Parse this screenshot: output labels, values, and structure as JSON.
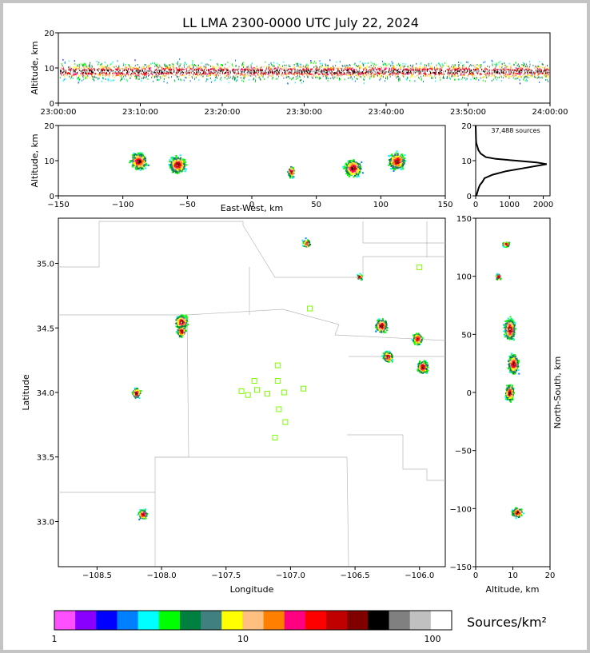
{
  "chart_data": [
    {
      "type": "scatter",
      "panel": "altitude-time",
      "title": "LL LMA 2300-0000 UTC July 22, 2024",
      "ylabel": "Altitude, km",
      "xlim": [
        "23:00:00",
        "24:00:00"
      ],
      "ylim": [
        0,
        20
      ],
      "yticks": [
        "0",
        "10",
        "20"
      ],
      "xticks": [
        "23:00:00",
        "23:10:00",
        "23:20:00",
        "23:30:00",
        "23:40:00",
        "23:50:00",
        "24:00:00"
      ],
      "description_of_data": "continuous band of sources between about 4 and 14 km altitude throughout the hour, densest near 9-10 km"
    },
    {
      "type": "scatter",
      "panel": "altitude-eastwest",
      "xlabel": "East-West, km",
      "ylabel": "Altitude, km",
      "xlim": [
        -150,
        150
      ],
      "ylim": [
        0,
        20
      ],
      "xticks": [
        "−150",
        "−100",
        "−50",
        "0",
        "50",
        "100",
        "150"
      ],
      "yticks": [
        "0",
        "10",
        "20"
      ],
      "clusters": [
        {
          "x": -88,
          "z": 10
        },
        {
          "x": -58,
          "z": 9
        },
        {
          "x": 30,
          "z": 7
        },
        {
          "x": 78,
          "z": 8
        },
        {
          "x": 112,
          "z": 10
        }
      ]
    },
    {
      "type": "line",
      "panel": "altitude-histogram",
      "annotation": "37,488 sources",
      "xlim": [
        0,
        2200
      ],
      "ylim": [
        0,
        20
      ],
      "xticks": [
        "0",
        "1000",
        "2000"
      ],
      "yticks": [
        "0",
        "10",
        "20"
      ],
      "points": [
        [
          20,
          0
        ],
        [
          80,
          2
        ],
        [
          120,
          3
        ],
        [
          200,
          4
        ],
        [
          260,
          5
        ],
        [
          500,
          6
        ],
        [
          900,
          7
        ],
        [
          1500,
          8
        ],
        [
          2100,
          9
        ],
        [
          1800,
          9.5
        ],
        [
          1200,
          10
        ],
        [
          600,
          10.5
        ],
        [
          300,
          11
        ],
        [
          150,
          12
        ],
        [
          80,
          13
        ],
        [
          50,
          14
        ],
        [
          20,
          15
        ],
        [
          10,
          16
        ],
        [
          5,
          18
        ],
        [
          0,
          20
        ]
      ]
    },
    {
      "type": "scatter",
      "panel": "plan-view-map",
      "xlabel": "Longitude",
      "ylabel": "Latitude",
      "xlim": [
        -108.8,
        -105.8
      ],
      "ylim": [
        32.65,
        35.35
      ],
      "xticks": [
        "−108.5",
        "−108.0",
        "−107.5",
        "−107.0",
        "−106.5",
        "−106.0"
      ],
      "yticks": [
        "33.0",
        "33.5",
        "34.0",
        "34.5",
        "35.0"
      ],
      "clusters": [
        {
          "lon": -108.15,
          "lat": 33.06
        },
        {
          "lon": -108.2,
          "lat": 34.0
        },
        {
          "lon": -107.85,
          "lat": 34.55
        },
        {
          "lon": -107.85,
          "lat": 34.48
        },
        {
          "lon": -106.88,
          "lat": 35.16
        },
        {
          "lon": -106.47,
          "lat": 34.9
        },
        {
          "lon": -106.3,
          "lat": 34.52
        },
        {
          "lon": -106.25,
          "lat": 34.28
        },
        {
          "lon": -106.02,
          "lat": 34.42
        },
        {
          "lon": -105.98,
          "lat": 34.2
        }
      ],
      "stations": [
        {
          "lon": -107.1,
          "lat": 34.21
        },
        {
          "lon": -107.28,
          "lat": 34.09
        },
        {
          "lon": -107.1,
          "lat": 34.09
        },
        {
          "lon": -107.38,
          "lat": 34.01
        },
        {
          "lon": -107.33,
          "lat": 33.98
        },
        {
          "lon": -107.26,
          "lat": 34.02
        },
        {
          "lon": -107.18,
          "lat": 33.99
        },
        {
          "lon": -107.05,
          "lat": 34.0
        },
        {
          "lon": -106.9,
          "lat": 34.03
        },
        {
          "lon": -107.09,
          "lat": 33.87
        },
        {
          "lon": -107.04,
          "lat": 33.77
        },
        {
          "lon": -107.12,
          "lat": 33.65
        },
        {
          "lon": -106.85,
          "lat": 34.65
        },
        {
          "lon": -106.0,
          "lat": 34.97
        }
      ],
      "station_color": "#7cfc00"
    },
    {
      "type": "scatter",
      "panel": "northsouth-altitude",
      "xlabel": "Altitude, km",
      "ylabel": "North-South, km",
      "xlim": [
        0,
        20
      ],
      "ylim": [
        -150,
        150
      ],
      "xticks": [
        "0",
        "10",
        "20"
      ],
      "yticks": [
        "−150",
        "−100",
        "−50",
        "0",
        "50",
        "100",
        "150"
      ],
      "clusters": [
        {
          "z": 8,
          "y": 128
        },
        {
          "z": 6,
          "y": 100
        },
        {
          "z": 9,
          "y": 55
        },
        {
          "z": 10,
          "y": 25
        },
        {
          "z": 9,
          "y": 0
        },
        {
          "z": 11,
          "y": -103
        }
      ]
    }
  ],
  "colorbar": {
    "label": "Sources/km²",
    "tick_labels": [
      "1",
      "10",
      "100"
    ],
    "colors": [
      "#ff50ff",
      "#8a00ff",
      "#0000ff",
      "#0080ff",
      "#00ffff",
      "#00ff00",
      "#008040",
      "#408080",
      "#ffff00",
      "#ffbf80",
      "#ff8000",
      "#ff0080",
      "#ff0000",
      "#c00000",
      "#800000",
      "#000000",
      "#808080",
      "#c0c0c0",
      "#ffffff"
    ]
  }
}
